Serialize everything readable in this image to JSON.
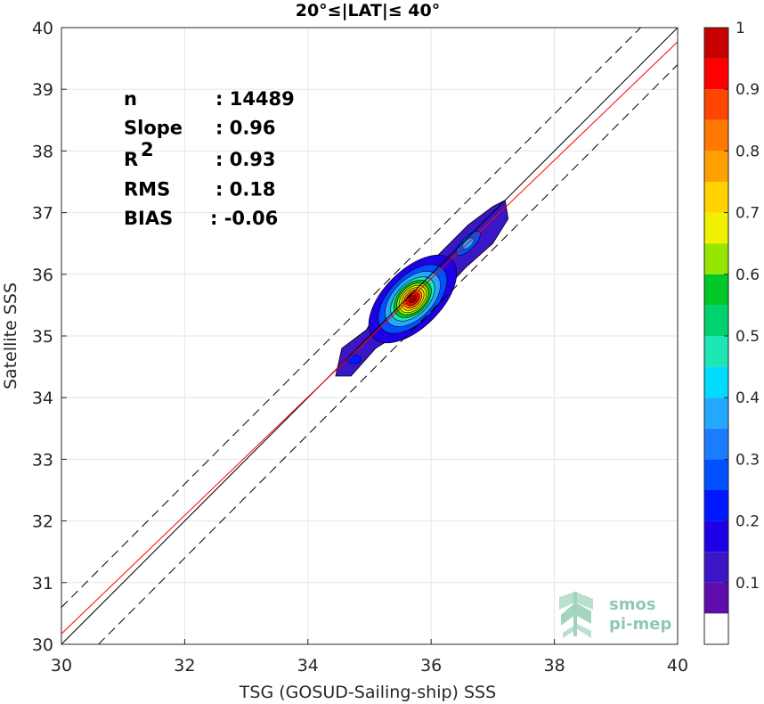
{
  "chart_data": {
    "type": "heatmap",
    "title": "20°≤|LAT|≤ 40°",
    "xlabel": "TSG (GOSUD-Sailing-ship) SSS",
    "ylabel": "Satellite SSS",
    "xlim": [
      30,
      40
    ],
    "ylim": [
      30,
      40
    ],
    "xticks": [
      "30",
      "32",
      "34",
      "36",
      "38",
      "40"
    ],
    "yticks": [
      "30",
      "31",
      "32",
      "33",
      "34",
      "35",
      "36",
      "37",
      "38",
      "39",
      "40"
    ],
    "grid": true,
    "stats": [
      {
        "label": "n",
        "value": ": 14489"
      },
      {
        "label": "Slope",
        "value": ": 0.96"
      },
      {
        "label": "R",
        "sup": "2",
        "value": ": 0.93"
      },
      {
        "label": "RMS",
        "value": ": 0.18"
      },
      {
        "label": "BIAS",
        "value": ": -0.06"
      }
    ],
    "lines": {
      "identity": {
        "slope": 1.0,
        "intercept": 0.0,
        "color": "#000000",
        "style": "solid"
      },
      "fit": {
        "slope": 0.96,
        "intercept": 1.37,
        "color": "#ff0000",
        "style": "solid"
      },
      "upper_bound": {
        "slope": 1.0,
        "intercept": 0.6,
        "color": "#000000",
        "style": "dashed"
      },
      "lower_bound": {
        "slope": 1.0,
        "intercept": -0.6,
        "color": "#000000",
        "style": "dashed"
      }
    },
    "density_peak": {
      "x": 35.7,
      "y": 35.6
    },
    "colorbar": {
      "ticks": [
        "0.1",
        "0.2",
        "0.3",
        "0.4",
        "0.5",
        "0.6",
        "0.7",
        "0.8",
        "0.9",
        "1"
      ],
      "levels": [
        0,
        0.05,
        0.1,
        0.15,
        0.2,
        0.25,
        0.3,
        0.35,
        0.4,
        0.45,
        0.5,
        0.55,
        0.6,
        0.65,
        0.7,
        0.75,
        0.8,
        0.85,
        0.9,
        0.95,
        1.0
      ],
      "colors": [
        "#ffffff",
        "#5e0cab",
        "#3a16c6",
        "#1e00e6",
        "#0018ff",
        "#0050ff",
        "#1a7cff",
        "#24a8ff",
        "#00dcff",
        "#1ee6b4",
        "#00d26e",
        "#00c828",
        "#96e600",
        "#f0f000",
        "#ffd200",
        "#ffa000",
        "#ff7800",
        "#ff4600",
        "#ff0000",
        "#c80000",
        "#820000"
      ]
    }
  },
  "logo": {
    "line1": "smos",
    "line2": "pi-mep"
  }
}
